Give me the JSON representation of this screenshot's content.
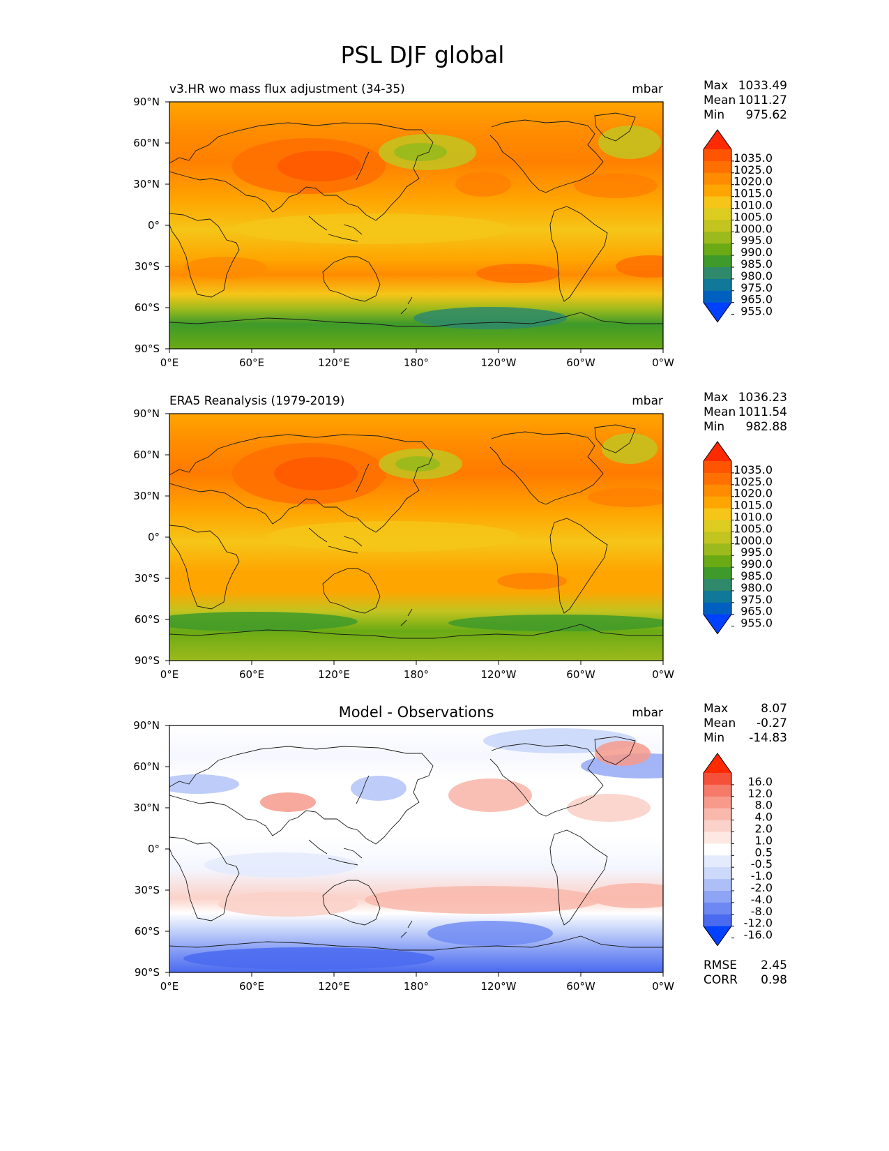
{
  "title": "PSL DJF global",
  "units": "mbar",
  "lat_labels": [
    "90°N",
    "60°N",
    "30°N",
    "0°",
    "30°S",
    "60°S",
    "90°S"
  ],
  "lon_labels": [
    "0°E",
    "60°E",
    "120°E",
    "180°",
    "120°W",
    "60°W",
    "0°W"
  ],
  "panels": [
    {
      "id": "model",
      "title": "v3.HR wo mass flux adjustment (34-35)",
      "title_centered": false,
      "units": "mbar",
      "stats": [
        {
          "label": "Max",
          "value": "1033.49"
        },
        {
          "label": "Mean",
          "value": "1011.27"
        },
        {
          "label": "Min",
          "value": "975.62"
        }
      ],
      "colorbar": {
        "ticks": [
          "1035.0",
          "1025.0",
          "1020.0",
          "1015.0",
          "1010.0",
          "1005.0",
          "1000.0",
          "995.0",
          "990.0",
          "985.0",
          "980.0",
          "975.0",
          "965.0",
          "955.0"
        ],
        "colors": [
          "#ff2a00",
          "#ff5400",
          "#ff7000",
          "#ff8c00",
          "#ffa500",
          "#f5c518",
          "#ddcc20",
          "#c2c420",
          "#9cba1c",
          "#6aaa14",
          "#3e9a2a",
          "#2e8a6a",
          "#107898",
          "#0060c0",
          "#0040ff"
        ]
      }
    },
    {
      "id": "obs",
      "title": "ERA5 Reanalysis (1979-2019)",
      "title_centered": false,
      "units": "mbar",
      "stats": [
        {
          "label": "Max",
          "value": "1036.23"
        },
        {
          "label": "Mean",
          "value": "1011.54"
        },
        {
          "label": "Min",
          "value": "982.88"
        }
      ],
      "colorbar": {
        "ticks": [
          "1035.0",
          "1025.0",
          "1020.0",
          "1015.0",
          "1010.0",
          "1005.0",
          "1000.0",
          "995.0",
          "990.0",
          "985.0",
          "980.0",
          "975.0",
          "965.0",
          "955.0"
        ],
        "colors": [
          "#ff2a00",
          "#ff5400",
          "#ff7000",
          "#ff8c00",
          "#ffa500",
          "#f5c518",
          "#ddcc20",
          "#c2c420",
          "#9cba1c",
          "#6aaa14",
          "#3e9a2a",
          "#2e8a6a",
          "#107898",
          "#0060c0",
          "#0040ff"
        ]
      }
    },
    {
      "id": "diff",
      "title": "Model - Observations",
      "title_centered": true,
      "units": "mbar",
      "stats": [
        {
          "label": "Max",
          "value": "8.07"
        },
        {
          "label": "Mean",
          "value": "-0.27"
        },
        {
          "label": "Min",
          "value": "-14.83"
        }
      ],
      "bottom_stats": [
        {
          "label": "RMSE",
          "value": "2.45"
        },
        {
          "label": "CORR",
          "value": "0.98"
        }
      ],
      "colorbar": {
        "ticks": [
          "16.0",
          "12.0",
          "8.0",
          "4.0",
          "2.0",
          "1.0",
          "0.5",
          "-0.5",
          "-1.0",
          "-2.0",
          "-4.0",
          "-8.0",
          "-12.0",
          "-16.0"
        ],
        "colors": [
          "#ff2a00",
          "#f5503a",
          "#f57a6a",
          "#f79a8c",
          "#f9b8ac",
          "#fbd2c9",
          "#fde8e3",
          "#ffffff",
          "#e4ebfd",
          "#ccd9fb",
          "#aebff8",
          "#8ea4f5",
          "#6d88f2",
          "#4a6af0",
          "#0040ff"
        ]
      }
    }
  ]
}
